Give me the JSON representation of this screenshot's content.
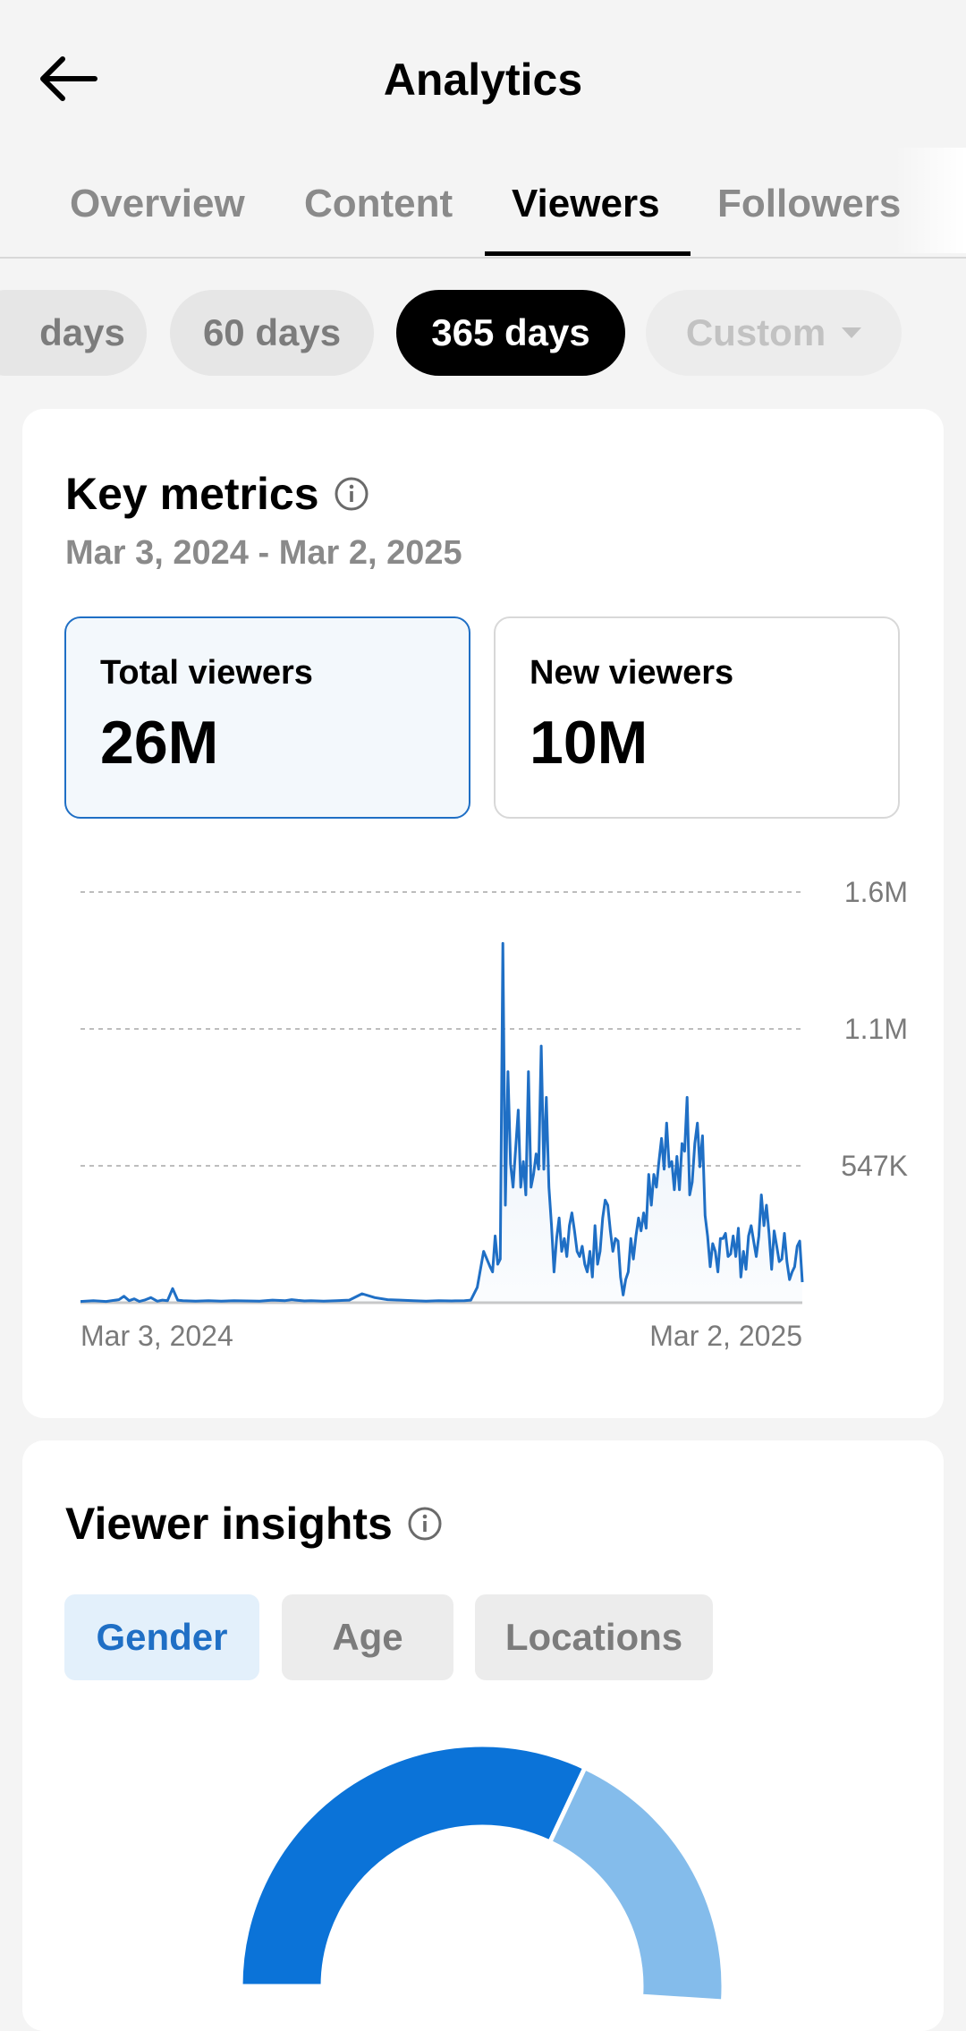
{
  "header": {
    "title": "Analytics"
  },
  "tabs": [
    {
      "label": "Overview"
    },
    {
      "label": "Content"
    },
    {
      "label": "Viewers"
    },
    {
      "label": "Followers"
    }
  ],
  "active_tab": "Viewers",
  "date_range_chips": [
    {
      "label": "days"
    },
    {
      "label": "60 days"
    },
    {
      "label": "365 days"
    },
    {
      "label": "Custom"
    }
  ],
  "selected_range": "365 days",
  "key_metrics": {
    "title": "Key metrics",
    "date_range": "Mar 3, 2024 - Mar 2, 2025",
    "cards": [
      {
        "label": "Total viewers",
        "value": "26M",
        "selected": true
      },
      {
        "label": "New viewers",
        "value": "10M",
        "selected": false
      }
    ]
  },
  "chart_data": {
    "type": "area",
    "title": "",
    "xlabel": "",
    "ylabel": "",
    "x_tick_labels": [
      "Mar 3, 2024",
      "Mar 2, 2025"
    ],
    "y_tick_labels": [
      "1.6M",
      "1.1M",
      "547K"
    ],
    "ylim": [
      0,
      1600000
    ],
    "grid": true,
    "series": [
      {
        "color": "#1f6fc5",
        "x": [
          0,
          10,
          20,
          30,
          34,
          38,
          42,
          46,
          50,
          55,
          60,
          64,
          68,
          72,
          76,
          80,
          90,
          100,
          110,
          120,
          130,
          140,
          150,
          160,
          165,
          170,
          175,
          180,
          190,
          200,
          210,
          220,
          230,
          240,
          250,
          260,
          270,
          280,
          290,
          300,
          305,
          310,
          315,
          320,
          322,
          324,
          326,
          328,
          330,
          332,
          334,
          336,
          338,
          340,
          342,
          344,
          346,
          348,
          350,
          352,
          354,
          356,
          358,
          360,
          362,
          364,
          366,
          368,
          370,
          372,
          374,
          376,
          378,
          380,
          382,
          384,
          386,
          388,
          390,
          392,
          394,
          396,
          398,
          400,
          402,
          404,
          406,
          408,
          410,
          412,
          414,
          416,
          418,
          420,
          422,
          424,
          426,
          428,
          430,
          432,
          434,
          436,
          438,
          440,
          442,
          444,
          446,
          448,
          450,
          452,
          454,
          456,
          458,
          460,
          462,
          464,
          466,
          468,
          470,
          472,
          474,
          476,
          478,
          480,
          482,
          484,
          486,
          488,
          490,
          492,
          494,
          496,
          498,
          500,
          502,
          504,
          506,
          508,
          510,
          512,
          514,
          516,
          518,
          520,
          522,
          524,
          526,
          528,
          530,
          532,
          534,
          536,
          538,
          540,
          542,
          544,
          546,
          548,
          550,
          552,
          554,
          556,
          558,
          560,
          562,
          564
        ],
        "values": [
          5000,
          8000,
          5000,
          12000,
          25000,
          8000,
          15000,
          5000,
          10000,
          20000,
          6000,
          10000,
          8000,
          55000,
          10000,
          8000,
          6000,
          8000,
          6000,
          8000,
          7000,
          6000,
          10000,
          8000,
          12000,
          9000,
          7000,
          8000,
          6000,
          8000,
          10000,
          35000,
          20000,
          12000,
          10000,
          8000,
          6000,
          8000,
          7000,
          8000,
          10000,
          60000,
          200000,
          140000,
          120000,
          260000,
          150000,
          170000,
          1400000,
          380000,
          900000,
          540000,
          450000,
          600000,
          750000,
          450000,
          550000,
          420000,
          900000,
          450000,
          500000,
          580000,
          520000,
          1000000,
          520000,
          800000,
          450000,
          300000,
          120000,
          250000,
          330000,
          200000,
          250000,
          180000,
          300000,
          350000,
          280000,
          200000,
          180000,
          220000,
          150000,
          120000,
          200000,
          100000,
          300000,
          150000,
          200000,
          330000,
          400000,
          380000,
          280000,
          200000,
          250000,
          240000,
          100000,
          30000,
          90000,
          120000,
          250000,
          170000,
          260000,
          330000,
          280000,
          350000,
          290000,
          500000,
          380000,
          500000,
          450000,
          550000,
          640000,
          520000,
          700000,
          530000,
          550000,
          440000,
          570000,
          440000,
          620000,
          590000,
          800000,
          420000,
          470000,
          620000,
          700000,
          530000,
          650000,
          340000,
          260000,
          140000,
          230000,
          200000,
          120000,
          250000,
          250000,
          270000,
          180000,
          190000,
          260000,
          180000,
          290000,
          100000,
          200000,
          130000,
          260000,
          300000,
          240000,
          180000,
          260000,
          420000,
          300000,
          380000,
          270000,
          130000,
          280000,
          220000,
          160000,
          170000,
          270000,
          160000,
          90000,
          120000,
          140000,
          220000,
          240000,
          80000
        ]
      }
    ]
  },
  "viewer_insights": {
    "title": "Viewer insights",
    "tabs": [
      {
        "label": "Gender"
      },
      {
        "label": "Age"
      },
      {
        "label": "Locations"
      }
    ],
    "active_tab": "Gender",
    "donut_colors": [
      "#0b73d8",
      "#84bceb"
    ]
  }
}
